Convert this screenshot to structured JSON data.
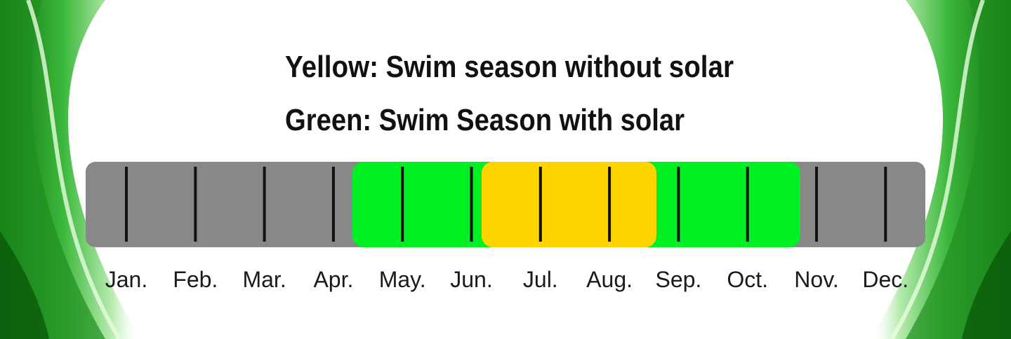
{
  "legend": {
    "yellow": "Yellow: Swim season without solar",
    "green": "Green: Swim Season with solar"
  },
  "months": [
    "Jan.",
    "Feb.",
    "Mar.",
    "Apr.",
    "May.",
    "Jun.",
    "Jul.",
    "Aug.",
    "Sep.",
    "Oct.",
    "Nov.",
    "Dec."
  ]
}
